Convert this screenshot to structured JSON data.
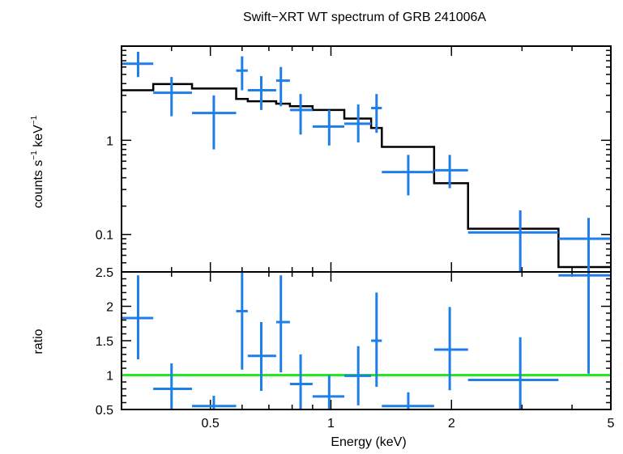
{
  "chart_data": [
    {
      "type": "scatter",
      "panel": "spectrum",
      "title": "Swift−XRT WT spectrum of GRB 241006A",
      "ylabel_main": "counts s",
      "ylabel_sup1": "−1",
      "ylabel_mid": " keV",
      "ylabel_sup2": "−1",
      "xlabel": "",
      "xscale": "log",
      "yscale": "log",
      "xlim": [
        0.3,
        5.0
      ],
      "ylim": [
        0.04,
        10.0
      ],
      "ytick_labels": [
        "1",
        "0.1"
      ],
      "colors": {
        "data": "#1f7ee8",
        "model": "#000000"
      },
      "series": [
        {
          "type": "errorbar",
          "points": [
            {
              "x": 0.33,
              "xlo": 0.3,
              "xhi": 0.36,
              "y": 6.5,
              "ylo": 4.7,
              "yhi": 8.7
            },
            {
              "x": 0.4,
              "xlo": 0.36,
              "xhi": 0.45,
              "y": 3.2,
              "ylo": 1.8,
              "yhi": 4.7
            },
            {
              "x": 0.51,
              "xlo": 0.45,
              "xhi": 0.58,
              "y": 1.95,
              "ylo": 0.8,
              "yhi": 3.0
            },
            {
              "x": 0.6,
              "xlo": 0.58,
              "xhi": 0.62,
              "y": 5.5,
              "ylo": 3.4,
              "yhi": 7.8
            },
            {
              "x": 0.67,
              "xlo": 0.62,
              "xhi": 0.73,
              "y": 3.4,
              "ylo": 2.1,
              "yhi": 4.8
            },
            {
              "x": 0.75,
              "xlo": 0.73,
              "xhi": 0.79,
              "y": 4.3,
              "ylo": 2.3,
              "yhi": 6.0
            },
            {
              "x": 0.84,
              "xlo": 0.79,
              "xhi": 0.9,
              "y": 2.1,
              "ylo": 1.15,
              "yhi": 3.1
            },
            {
              "x": 0.99,
              "xlo": 0.9,
              "xhi": 1.08,
              "y": 1.4,
              "ylo": 0.88,
              "yhi": 2.1
            },
            {
              "x": 1.17,
              "xlo": 1.08,
              "xhi": 1.26,
              "y": 1.5,
              "ylo": 0.95,
              "yhi": 2.4
            },
            {
              "x": 1.3,
              "xlo": 1.26,
              "xhi": 1.34,
              "y": 2.2,
              "ylo": 1.2,
              "yhi": 3.1
            },
            {
              "x": 1.56,
              "xlo": 1.34,
              "xhi": 1.81,
              "y": 0.46,
              "ylo": 0.26,
              "yhi": 0.7
            },
            {
              "x": 1.98,
              "xlo": 1.81,
              "xhi": 2.2,
              "y": 0.48,
              "ylo": 0.31,
              "yhi": 0.7
            },
            {
              "x": 2.97,
              "xlo": 2.2,
              "xhi": 3.7,
              "y": 0.105,
              "ylo": 0.04,
              "yhi": 0.18
            },
            {
              "x": 4.4,
              "xlo": 3.7,
              "xhi": 5.0,
              "y": 0.09,
              "ylo": 0.04,
              "yhi": 0.15
            }
          ]
        },
        {
          "type": "step",
          "name": "model",
          "edges": [
            0.3,
            0.36,
            0.45,
            0.58,
            0.62,
            0.73,
            0.79,
            0.9,
            1.08,
            1.26,
            1.34,
            1.81,
            2.2,
            3.7,
            5.0
          ],
          "values": [
            3.4,
            3.95,
            3.55,
            2.75,
            2.6,
            2.45,
            2.3,
            2.1,
            1.7,
            1.35,
            0.85,
            0.35,
            0.115,
            0.045
          ]
        }
      ]
    },
    {
      "type": "scatter",
      "panel": "ratio",
      "xlabel": "Energy (keV)",
      "ylabel": "ratio",
      "xscale": "log",
      "yscale": "linear",
      "xlim": [
        0.3,
        5.0
      ],
      "ylim": [
        0.5,
        2.5
      ],
      "xtick_labels": [
        "0.5",
        "1",
        "2",
        "5"
      ],
      "ytick_labels": [
        "0.5",
        "1",
        "1.5",
        "2",
        "2.5"
      ],
      "reference_line": 1.0,
      "colors": {
        "data": "#1f7ee8",
        "reference": "#22e822"
      },
      "series": [
        {
          "type": "errorbar",
          "points": [
            {
              "x": 0.33,
              "xlo": 0.3,
              "xhi": 0.36,
              "y": 1.83,
              "ylo": 1.23,
              "yhi": 2.45
            },
            {
              "x": 0.4,
              "xlo": 0.36,
              "xhi": 0.45,
              "y": 0.8,
              "ylo": 0.45,
              "yhi": 1.17
            },
            {
              "x": 0.51,
              "xlo": 0.45,
              "xhi": 0.58,
              "y": 0.55,
              "ylo": 0.45,
              "yhi": 0.7
            },
            {
              "x": 0.6,
              "xlo": 0.58,
              "xhi": 0.62,
              "y": 1.93,
              "ylo": 1.08,
              "yhi": 2.65
            },
            {
              "x": 0.67,
              "xlo": 0.62,
              "xhi": 0.73,
              "y": 1.28,
              "ylo": 0.77,
              "yhi": 1.77
            },
            {
              "x": 0.75,
              "xlo": 0.73,
              "xhi": 0.79,
              "y": 1.77,
              "ylo": 1.04,
              "yhi": 2.45
            },
            {
              "x": 0.84,
              "xlo": 0.79,
              "xhi": 0.9,
              "y": 0.87,
              "ylo": 0.47,
              "yhi": 1.3
            },
            {
              "x": 0.99,
              "xlo": 0.9,
              "xhi": 1.08,
              "y": 0.69,
              "ylo": 0.45,
              "yhi": 1.0
            },
            {
              "x": 1.17,
              "xlo": 1.08,
              "xhi": 1.26,
              "y": 0.99,
              "ylo": 0.56,
              "yhi": 1.42
            },
            {
              "x": 1.3,
              "xlo": 1.26,
              "xhi": 1.34,
              "y": 1.5,
              "ylo": 0.83,
              "yhi": 2.2
            },
            {
              "x": 1.56,
              "xlo": 1.34,
              "xhi": 1.81,
              "y": 0.55,
              "ylo": 0.45,
              "yhi": 0.75
            },
            {
              "x": 1.98,
              "xlo": 1.81,
              "xhi": 2.2,
              "y": 1.37,
              "ylo": 0.78,
              "yhi": 1.99
            },
            {
              "x": 2.97,
              "xlo": 2.2,
              "xhi": 3.7,
              "y": 0.93,
              "ylo": 0.45,
              "yhi": 1.55
            },
            {
              "x": 4.4,
              "xlo": 3.7,
              "xhi": 5.0,
              "y": 2.45,
              "ylo": 1.02,
              "yhi": 2.6
            }
          ]
        }
      ]
    }
  ]
}
